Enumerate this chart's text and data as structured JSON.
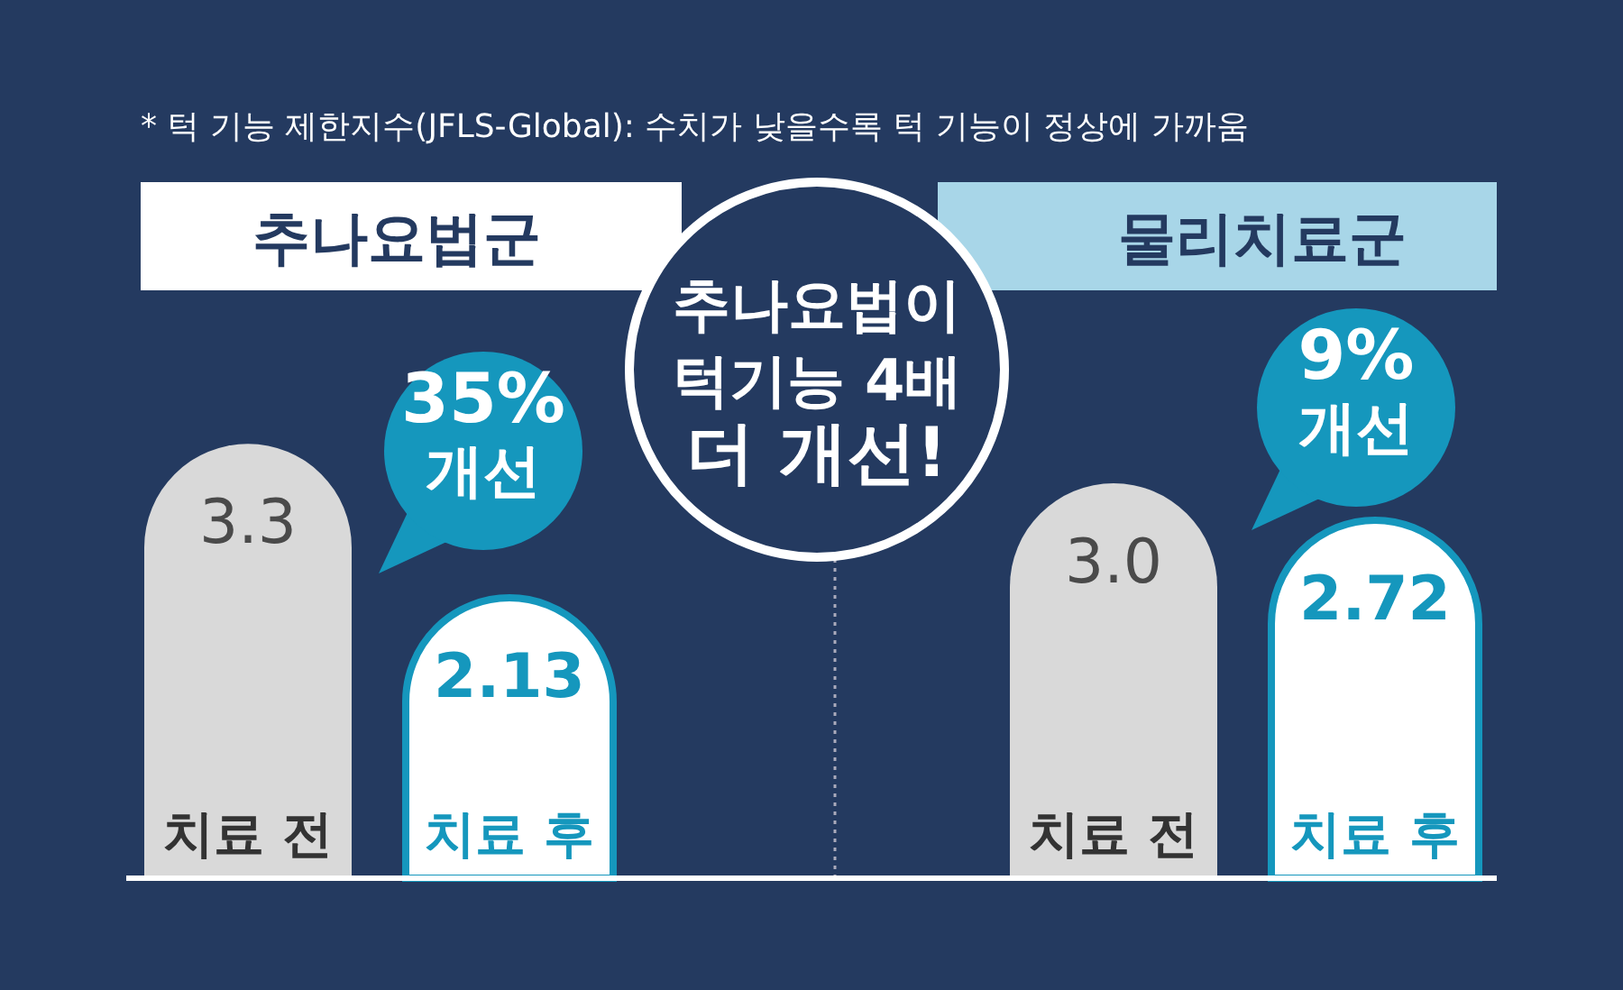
{
  "chart_data": [
    {
      "type": "bar",
      "title": "추나요법군",
      "categories": [
        "치료 전",
        "치료 후"
      ],
      "values": [
        3.3,
        2.13
      ],
      "colors": [
        "#d9d9d9",
        "#ffffff"
      ],
      "value_labels": [
        "3.3",
        "2.13"
      ],
      "annotations": [
        "* 턱 기능 제한지수(JFLS-Global): 수치가 낮을수록 턱 기능이 정상에 가까움",
        "추나요법이\n턱기능 4배\n더 개선!",
        "35%\n개선"
      ]
    },
    {
      "type": "bar",
      "title": "물리치료군",
      "categories": [
        "치료 전",
        "치료 후"
      ],
      "values": [
        3.0,
        2.72
      ],
      "colors": [
        "#d9d9d9",
        "#ffffff"
      ],
      "value_labels": [
        "3.0",
        "2.72"
      ],
      "annotations": [
        "9%\n개선"
      ]
    }
  ]
}
